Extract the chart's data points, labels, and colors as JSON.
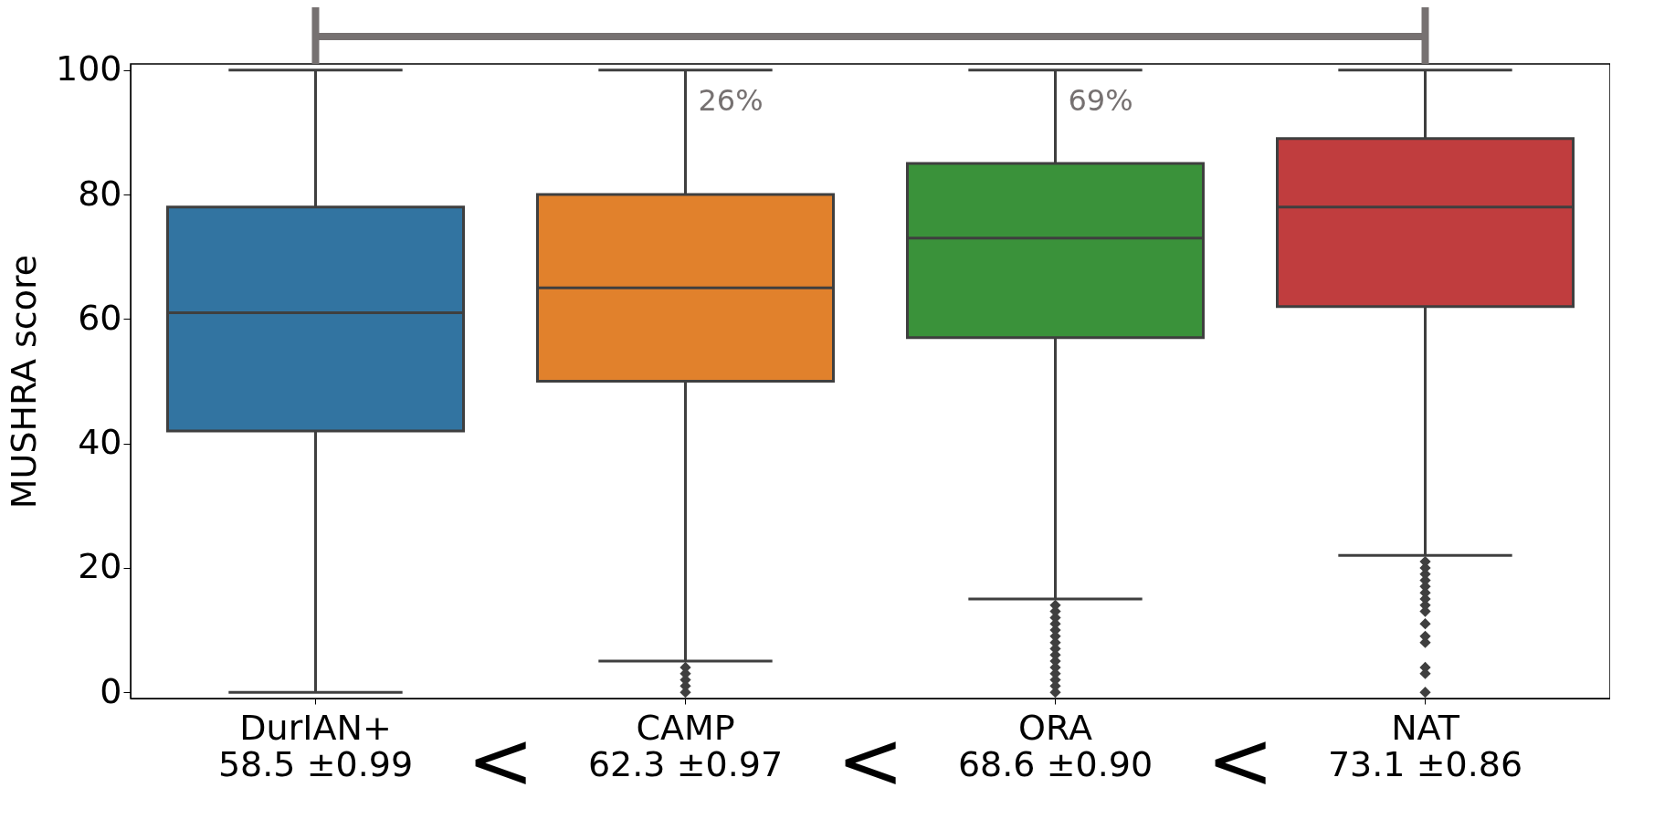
{
  "chart_data": {
    "type": "box",
    "ylabel": "MUSHRA score",
    "categories": [
      "DurIAN+\n58.5 ±0.99",
      "CAMP\n62.3 ±0.97",
      "ORA\n68.6 ±0.90",
      "NAT\n73.1 ±0.86"
    ],
    "colors": [
      "#3274a1",
      "#e1812c",
      "#3a923a",
      "#c03d3e"
    ],
    "boxes": [
      {
        "low": 0,
        "q1": 42,
        "median": 61,
        "q3": 78,
        "high": 100
      },
      {
        "low": 5,
        "q1": 50,
        "median": 65,
        "q3": 80,
        "high": 100,
        "outliers": [
          0,
          1,
          2,
          3,
          4
        ]
      },
      {
        "low": 15,
        "q1": 57,
        "median": 73,
        "q3": 85,
        "high": 100,
        "outliers": [
          0,
          1,
          2,
          3,
          4,
          5,
          6,
          7,
          8,
          9,
          10,
          11,
          12,
          13,
          14
        ]
      },
      {
        "low": 22,
        "q1": 62,
        "median": 78,
        "q3": 89,
        "high": 100,
        "outliers": [
          0,
          3,
          4,
          8,
          9,
          11,
          13,
          14,
          15,
          16,
          17,
          18,
          19,
          20,
          21
        ]
      }
    ],
    "ylim": [
      -1,
      101
    ],
    "yticks": [
      0,
      20,
      40,
      60,
      80,
      100
    ],
    "annotations": [
      {
        "text": "26%",
        "x": "CAMP\n62.3 ±0.97",
        "y": 95
      },
      {
        "text": "69%",
        "x": "ORA\n68.6 ±0.90",
        "y": 95
      },
      "<",
      "<",
      "<"
    ]
  }
}
